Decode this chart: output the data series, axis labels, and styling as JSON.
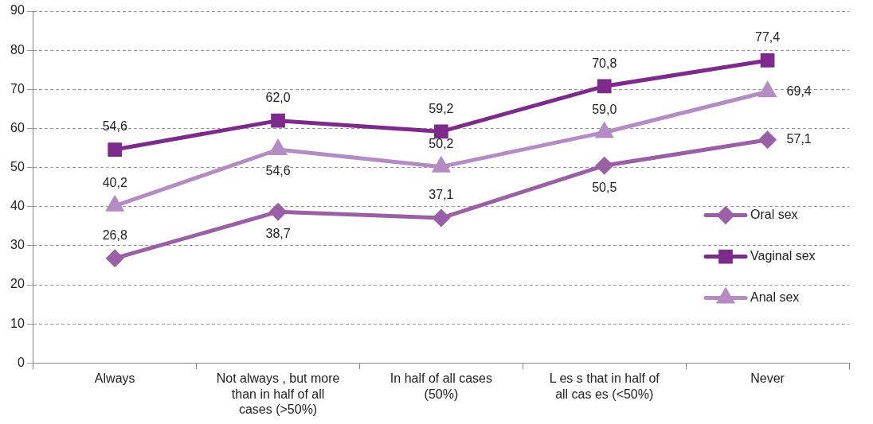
{
  "chart_data": {
    "type": "line",
    "categories": [
      "Always",
      "Not always , but more than in half of all cases (>50%)",
      "In half of all cases (50%)",
      "L es s that in half of all cas es (<50%)",
      "Never"
    ],
    "series": [
      {
        "name": "Oral sex",
        "color": "#9a5fa6",
        "marker": "diamond",
        "values": [
          26.8,
          38.7,
          37.1,
          50.5,
          57.1
        ],
        "value_labels": [
          "26,8",
          "38,7",
          "37,1",
          "50,5",
          "57,1"
        ]
      },
      {
        "name": "Vaginal sex",
        "color": "#7d2a8c",
        "marker": "square",
        "values": [
          54.6,
          62.0,
          59.2,
          70.8,
          77.4
        ],
        "value_labels": [
          "54,6",
          "62,0",
          "59,2",
          "70,8",
          "77,4"
        ]
      },
      {
        "name": "Anal sex",
        "color": "#b48bc2",
        "marker": "triangle",
        "values": [
          40.2,
          54.6,
          50.2,
          59.0,
          69.4
        ],
        "value_labels": [
          "40,2",
          "54,6",
          "50,2",
          "59,0",
          "69,4"
        ]
      }
    ],
    "ylim": [
      0,
      90
    ],
    "yticks": [
      0,
      10,
      20,
      30,
      40,
      50,
      60,
      70,
      80,
      90
    ],
    "grid": "y",
    "legend": "right"
  }
}
